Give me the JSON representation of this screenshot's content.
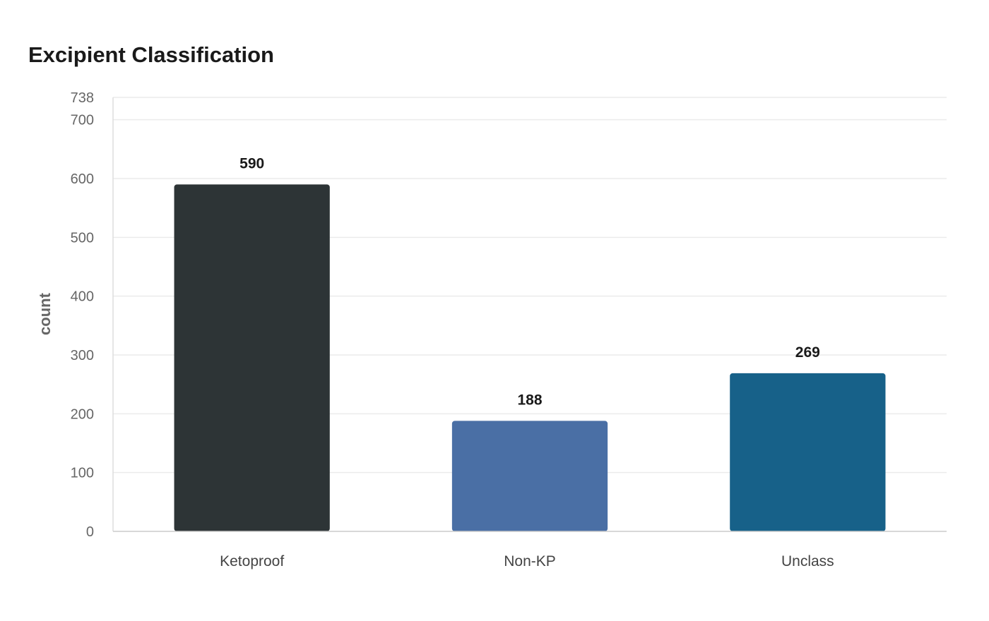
{
  "chart_data": {
    "type": "bar",
    "title": "Excipient Classification",
    "xlabel": "",
    "ylabel": "count",
    "categories": [
      "Ketoproof",
      "Non-KP",
      "Unclass"
    ],
    "values": [
      590,
      188,
      269
    ],
    "colors": [
      "#2d3436",
      "#4a6fa5",
      "#176189"
    ],
    "yticks": [
      0,
      100,
      200,
      300,
      400,
      500,
      600,
      700,
      738
    ],
    "ylim": [
      0,
      738
    ],
    "grid": true,
    "legend": "none"
  }
}
